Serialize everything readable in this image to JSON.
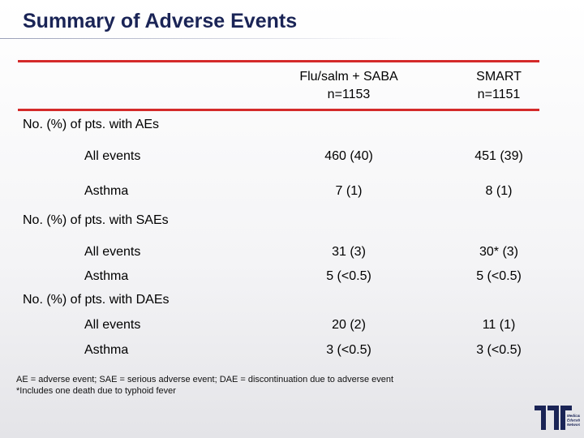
{
  "header": {
    "title": "Summary of Adverse Events"
  },
  "table": {
    "columns": [
      {
        "name": "Flu/salm + SABA",
        "n": "n=1153"
      },
      {
        "name": "SMART",
        "n": "n=1151"
      }
    ],
    "sections": [
      {
        "title": "No. (%) of pts. with AEs",
        "rows": [
          [
            "All events",
            "460 (40)",
            "451 (39)"
          ],
          [
            "Asthma",
            "7 (1)",
            "8 (1)"
          ]
        ]
      },
      {
        "title": "No. (%) of pts. with SAEs",
        "rows": [
          [
            "All events",
            "31 (3)",
            "30* (3)"
          ],
          [
            "Asthma",
            "5 (<0.5)",
            "5 (<0.5)"
          ]
        ]
      },
      {
        "title": "No. (%) of pts. with DAEs",
        "rows": [
          [
            "All events",
            "20 (2)",
            "11 (1)"
          ],
          [
            "Asthma",
            "3 (<0.5)",
            "3 (<0.5)"
          ]
        ]
      }
    ]
  },
  "footnotes": [
    "AE = adverse event; SAE = serious adverse event; DAE = discontinuation due to adverse event",
    "*Includes one death due to typhoid fever"
  ],
  "logo": {
    "lines": [
      "Medical",
      "Education",
      "Network"
    ]
  }
}
